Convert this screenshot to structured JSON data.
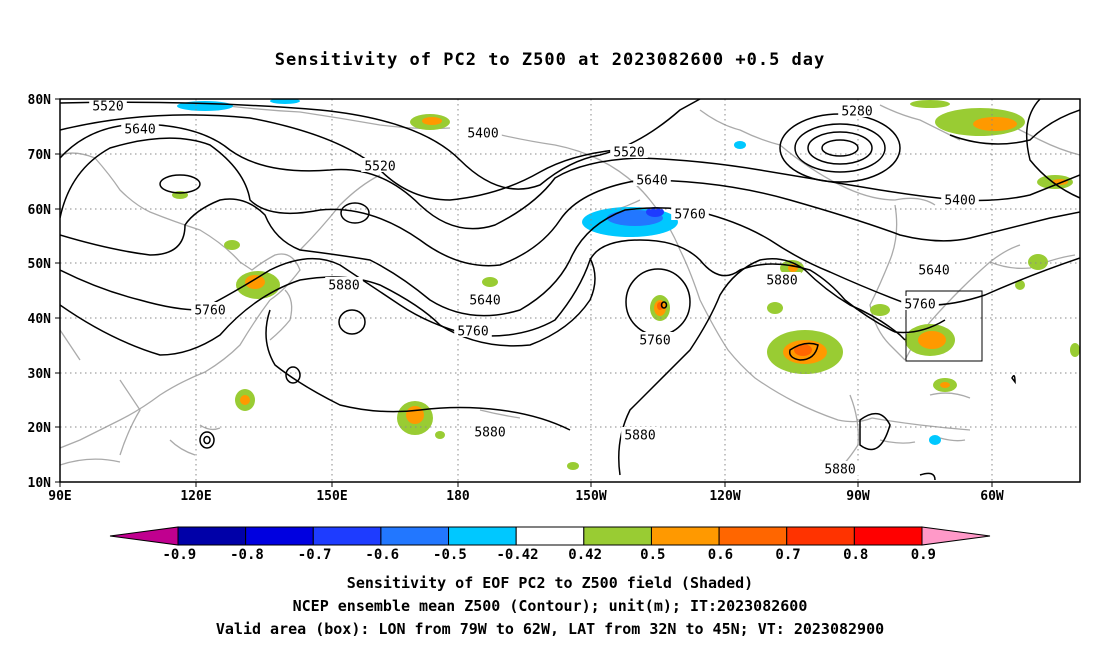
{
  "title": "Sensitivity of PC2 to Z500 at 2023082600 +0.5 day",
  "lat_labels": [
    "80N",
    "70N",
    "60N",
    "50N",
    "40N",
    "30N",
    "20N",
    "10N"
  ],
  "lon_labels": [
    "90E",
    "120E",
    "150E",
    "180",
    "150W",
    "120W",
    "90W",
    "60W"
  ],
  "contour_labels": [
    {
      "text": "5520"
    },
    {
      "text": "5640"
    },
    {
      "text": "5400"
    },
    {
      "text": "5520"
    },
    {
      "text": "5520"
    },
    {
      "text": "5640"
    },
    {
      "text": "5760"
    },
    {
      "text": "5280"
    },
    {
      "text": "5400"
    },
    {
      "text": "5640"
    },
    {
      "text": "5880"
    },
    {
      "text": "5760"
    },
    {
      "text": "5760"
    },
    {
      "text": "5880"
    },
    {
      "text": "5640"
    },
    {
      "text": "5760"
    },
    {
      "text": "5760"
    },
    {
      "text": "5880"
    },
    {
      "text": "5880"
    },
    {
      "text": "5880"
    }
  ],
  "colorbar": {
    "labels": [
      "-0.9",
      "-0.8",
      "-0.7",
      "-0.6",
      "-0.5",
      "-0.42",
      "0.42",
      "0.5",
      "0.6",
      "0.7",
      "0.8",
      "0.9"
    ],
    "colors": [
      "#c0008f",
      "#0000a8",
      "#0000e0",
      "#1e3cff",
      "#2277ff",
      "#00c8ff",
      "#ffffff",
      "#99cc33",
      "#ff9900",
      "#ff6600",
      "#ff3300",
      "#ff0000",
      "#ff99c8"
    ]
  },
  "captions": [
    "Sensitivity of EOF PC2 to Z500 field (Shaded)",
    "NCEP ensemble mean Z500 (Contour); unit(m); IT:2023082600",
    "Valid area (box): LON from 79W to 62W, LAT from 32N to 45N; VT: 2023082900"
  ]
}
